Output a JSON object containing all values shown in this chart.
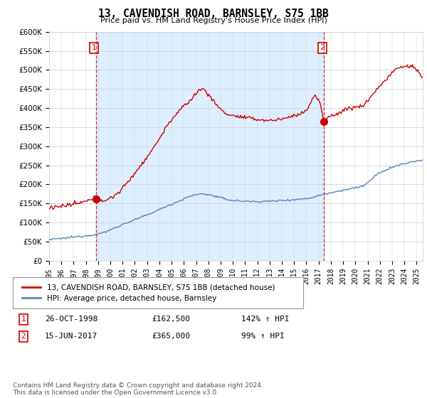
{
  "title": "13, CAVENDISH ROAD, BARNSLEY, S75 1BB",
  "subtitle": "Price paid vs. HM Land Registry's House Price Index (HPI)",
  "legend_label_red": "13, CAVENDISH ROAD, BARNSLEY, S75 1BB (detached house)",
  "legend_label_blue": "HPI: Average price, detached house, Barnsley",
  "table_rows": [
    {
      "num": "1",
      "date": "26-OCT-1998",
      "price": "£162,500",
      "change": "142% ↑ HPI"
    },
    {
      "num": "2",
      "date": "15-JUN-2017",
      "price": "£365,000",
      "change": "99% ↑ HPI"
    }
  ],
  "footnote": "Contains HM Land Registry data © Crown copyright and database right 2024.\nThis data is licensed under the Open Government Licence v3.0.",
  "sale1_x": 1998.82,
  "sale1_y": 162500,
  "sale2_x": 2017.45,
  "sale2_y": 365000,
  "red_color": "#cc0000",
  "blue_color": "#5588bb",
  "bg_fill_color": "#ddeeff",
  "vline_color": "#cc0000",
  "grid_color": "#cccccc",
  "background_color": "#ffffff",
  "ylim": [
    0,
    600000
  ],
  "xlim_start": 1995.0,
  "xlim_end": 2025.5
}
